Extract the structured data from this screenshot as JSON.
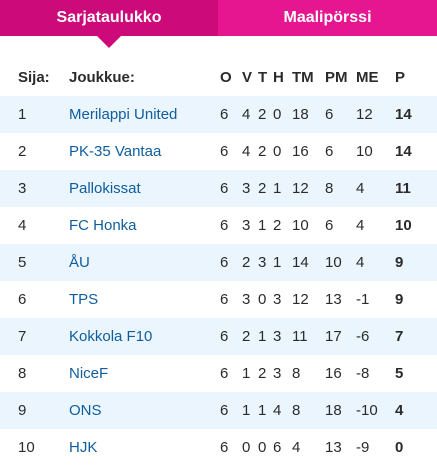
{
  "tabs": {
    "standings": "Sarjataulukko",
    "scorers": "Maalipörssi"
  },
  "accent_colors": {
    "active_tab": "#cc0a7a",
    "inactive_tab": "#e51690",
    "stripe": "#eaf5fd",
    "team_link": "#0f5d9c"
  },
  "table": {
    "columns": {
      "rank": "Sija:",
      "team": "Joukkue:",
      "played": "O",
      "wins": "V",
      "draws": "T",
      "losses": "H",
      "goals_for": "TM",
      "goals_against": "PM",
      "goal_diff": "ME",
      "points": "P"
    },
    "rows": [
      {
        "rank": "1",
        "team": "Merilappi United",
        "played": "6",
        "wins": "4",
        "draws": "2",
        "losses": "0",
        "goals_for": "18",
        "goals_against": "6",
        "goal_diff": "12",
        "points": "14"
      },
      {
        "rank": "2",
        "team": "PK-35 Vantaa",
        "played": "6",
        "wins": "4",
        "draws": "2",
        "losses": "0",
        "goals_for": "16",
        "goals_against": "6",
        "goal_diff": "10",
        "points": "14"
      },
      {
        "rank": "3",
        "team": "Pallokissat",
        "played": "6",
        "wins": "3",
        "draws": "2",
        "losses": "1",
        "goals_for": "12",
        "goals_against": "8",
        "goal_diff": "4",
        "points": "11"
      },
      {
        "rank": "4",
        "team": "FC Honka",
        "played": "6",
        "wins": "3",
        "draws": "1",
        "losses": "2",
        "goals_for": "10",
        "goals_against": "6",
        "goal_diff": "4",
        "points": "10"
      },
      {
        "rank": "5",
        "team": "ÅU",
        "played": "6",
        "wins": "2",
        "draws": "3",
        "losses": "1",
        "goals_for": "14",
        "goals_against": "10",
        "goal_diff": "4",
        "points": "9"
      },
      {
        "rank": "6",
        "team": "TPS",
        "played": "6",
        "wins": "3",
        "draws": "0",
        "losses": "3",
        "goals_for": "12",
        "goals_against": "13",
        "goal_diff": "-1",
        "points": "9"
      },
      {
        "rank": "7",
        "team": "Kokkola F10",
        "played": "6",
        "wins": "2",
        "draws": "1",
        "losses": "3",
        "goals_for": "11",
        "goals_against": "17",
        "goal_diff": "-6",
        "points": "7"
      },
      {
        "rank": "8",
        "team": "NiceF",
        "played": "6",
        "wins": "1",
        "draws": "2",
        "losses": "3",
        "goals_for": "8",
        "goals_against": "16",
        "goal_diff": "-8",
        "points": "5"
      },
      {
        "rank": "9",
        "team": "ONS",
        "played": "6",
        "wins": "1",
        "draws": "1",
        "losses": "4",
        "goals_for": "8",
        "goals_against": "18",
        "goal_diff": "-10",
        "points": "4"
      },
      {
        "rank": "10",
        "team": "HJK",
        "played": "6",
        "wins": "0",
        "draws": "0",
        "losses": "6",
        "goals_for": "4",
        "goals_against": "13",
        "goal_diff": "-9",
        "points": "0"
      }
    ]
  }
}
